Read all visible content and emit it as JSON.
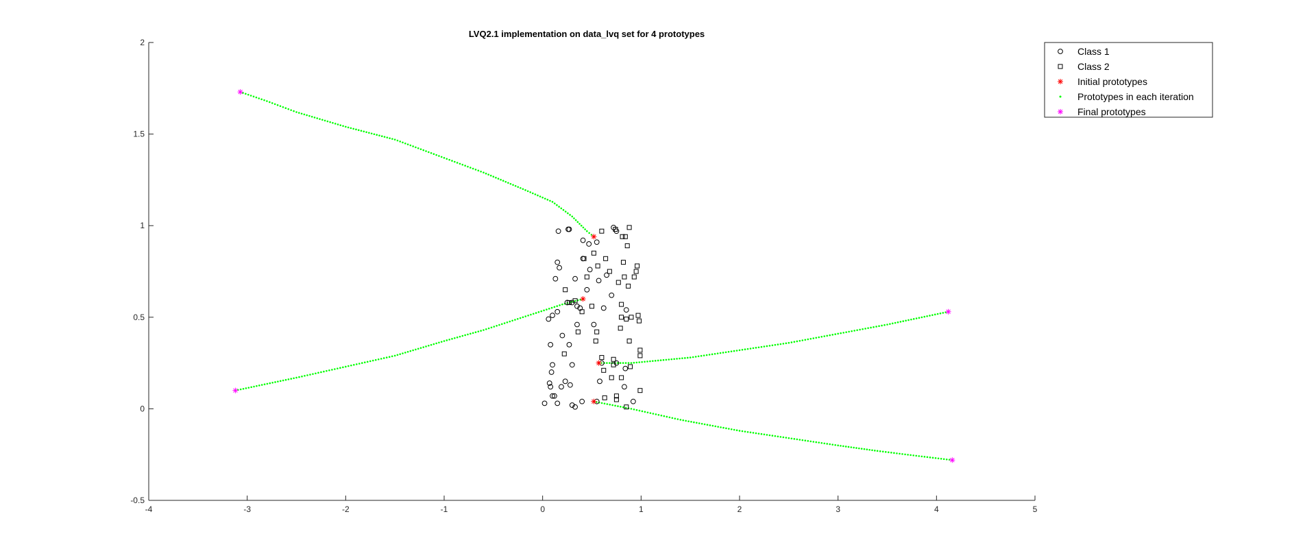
{
  "chart_data": {
    "type": "scatter",
    "title": "LVQ2.1 implementation on data_lvq set for 4 prototypes",
    "xlim": [
      -4,
      5
    ],
    "ylim": [
      -0.5,
      2
    ],
    "xticks": [
      -4,
      -3,
      -2,
      -1,
      0,
      1,
      2,
      3,
      4,
      5
    ],
    "yticks": [
      -0.5,
      0,
      0.5,
      1,
      1.5,
      2
    ],
    "grid": false,
    "legend_position": "top-right-outside",
    "colors": {
      "class1": "#000000",
      "class2": "#000000",
      "initial": "#ff0000",
      "iteration": "#00ff00",
      "final": "#ff00ff",
      "axis": "#262626"
    },
    "legend": [
      {
        "key": "class1",
        "label": "Class 1",
        "marker": "circle"
      },
      {
        "key": "class2",
        "label": "Class 2",
        "marker": "square"
      },
      {
        "key": "initial",
        "label": "Initial prototypes",
        "marker": "asterisk"
      },
      {
        "key": "iteration",
        "label": "Prototypes in each iteration",
        "marker": "dot"
      },
      {
        "key": "final",
        "label": "Final prototypes",
        "marker": "asterisk"
      }
    ],
    "class1": [
      [
        0.02,
        0.03
      ],
      [
        0.07,
        0.14
      ],
      [
        0.08,
        0.12
      ],
      [
        0.09,
        0.2
      ],
      [
        0.1,
        0.24
      ],
      [
        0.1,
        0.07
      ],
      [
        0.12,
        0.07
      ],
      [
        0.15,
        0.03
      ],
      [
        0.19,
        0.12
      ],
      [
        0.2,
        0.4
      ],
      [
        0.23,
        0.15
      ],
      [
        0.28,
        0.13
      ],
      [
        0.27,
        0.35
      ],
      [
        0.3,
        0.24
      ],
      [
        0.3,
        0.02
      ],
      [
        0.33,
        0.01
      ],
      [
        0.4,
        0.04
      ],
      [
        0.06,
        0.49
      ],
      [
        0.08,
        0.35
      ],
      [
        0.1,
        0.51
      ],
      [
        0.15,
        0.53
      ],
      [
        0.13,
        0.71
      ],
      [
        0.15,
        0.8
      ],
      [
        0.17,
        0.77
      ],
      [
        0.25,
        0.58
      ],
      [
        0.3,
        0.58
      ],
      [
        0.33,
        0.71
      ],
      [
        0.35,
        0.56
      ],
      [
        0.38,
        0.55
      ],
      [
        0.16,
        0.97
      ],
      [
        0.26,
        0.98
      ],
      [
        0.27,
        0.98
      ],
      [
        0.35,
        0.46
      ],
      [
        0.41,
        0.92
      ],
      [
        0.41,
        0.82
      ],
      [
        0.45,
        0.65
      ],
      [
        0.48,
        0.76
      ],
      [
        0.47,
        0.9
      ],
      [
        0.52,
        0.46
      ],
      [
        0.55,
        0.91
      ],
      [
        0.57,
        0.7
      ],
      [
        0.58,
        0.15
      ],
      [
        0.6,
        0.25
      ],
      [
        0.62,
        0.55
      ],
      [
        0.55,
        0.04
      ],
      [
        0.83,
        0.12
      ],
      [
        0.84,
        0.22
      ],
      [
        0.85,
        0.54
      ],
      [
        0.92,
        0.04
      ],
      [
        0.72,
        0.99
      ],
      [
        0.75,
        0.97
      ],
      [
        0.65,
        0.73
      ],
      [
        0.7,
        0.62
      ],
      [
        0.75,
        0.25
      ]
    ],
    "class2": [
      [
        0.22,
        0.3
      ],
      [
        0.23,
        0.65
      ],
      [
        0.27,
        0.58
      ],
      [
        0.33,
        0.59
      ],
      [
        0.36,
        0.42
      ],
      [
        0.4,
        0.53
      ],
      [
        0.42,
        0.82
      ],
      [
        0.45,
        0.72
      ],
      [
        0.5,
        0.56
      ],
      [
        0.52,
        0.85
      ],
      [
        0.54,
        0.37
      ],
      [
        0.55,
        0.42
      ],
      [
        0.56,
        0.78
      ],
      [
        0.6,
        0.28
      ],
      [
        0.6,
        0.97
      ],
      [
        0.62,
        0.21
      ],
      [
        0.63,
        0.06
      ],
      [
        0.64,
        0.82
      ],
      [
        0.68,
        0.75
      ],
      [
        0.7,
        0.17
      ],
      [
        0.72,
        0.27
      ],
      [
        0.72,
        0.24
      ],
      [
        0.74,
        0.98
      ],
      [
        0.75,
        0.07
      ],
      [
        0.75,
        0.05
      ],
      [
        0.77,
        0.69
      ],
      [
        0.79,
        0.44
      ],
      [
        0.8,
        0.57
      ],
      [
        0.8,
        0.5
      ],
      [
        0.8,
        0.17
      ],
      [
        0.81,
        0.94
      ],
      [
        0.83,
        0.72
      ],
      [
        0.84,
        0.94
      ],
      [
        0.85,
        0.01
      ],
      [
        0.85,
        0.49
      ],
      [
        0.86,
        0.89
      ],
      [
        0.87,
        0.67
      ],
      [
        0.88,
        0.37
      ],
      [
        0.89,
        0.23
      ],
      [
        0.9,
        0.5
      ],
      [
        0.88,
        0.99
      ],
      [
        0.93,
        0.72
      ],
      [
        0.95,
        0.75
      ],
      [
        0.96,
        0.78
      ],
      [
        0.97,
        0.51
      ],
      [
        0.98,
        0.48
      ],
      [
        0.99,
        0.29
      ],
      [
        0.99,
        0.32
      ],
      [
        0.99,
        0.1
      ],
      [
        0.82,
        0.8
      ]
    ],
    "initial_prototypes": [
      [
        0.52,
        0.94
      ],
      [
        0.41,
        0.6
      ],
      [
        0.57,
        0.25
      ],
      [
        0.52,
        0.04
      ]
    ],
    "final_prototypes": [
      [
        -3.07,
        1.73
      ],
      [
        -3.12,
        0.1
      ],
      [
        4.12,
        0.53
      ],
      [
        4.16,
        -0.28
      ]
    ],
    "iteration_paths": [
      [
        [
          0.52,
          0.94
        ],
        [
          0.45,
          0.97
        ],
        [
          0.3,
          1.05
        ],
        [
          0.1,
          1.13
        ],
        [
          -0.2,
          1.2
        ],
        [
          -0.6,
          1.29
        ],
        [
          -1.0,
          1.37
        ],
        [
          -1.5,
          1.47
        ],
        [
          -2.0,
          1.54
        ],
        [
          -2.5,
          1.62
        ],
        [
          -2.8,
          1.68
        ],
        [
          -3.07,
          1.73
        ]
      ],
      [
        [
          0.41,
          0.6
        ],
        [
          0.2,
          0.57
        ],
        [
          -0.2,
          0.5
        ],
        [
          -0.6,
          0.43
        ],
        [
          -1.0,
          0.37
        ],
        [
          -1.5,
          0.29
        ],
        [
          -2.0,
          0.23
        ],
        [
          -2.5,
          0.17
        ],
        [
          -3.12,
          0.1
        ]
      ],
      [
        [
          0.57,
          0.25
        ],
        [
          0.9,
          0.25
        ],
        [
          1.5,
          0.28
        ],
        [
          2.0,
          0.32
        ],
        [
          2.5,
          0.36
        ],
        [
          3.0,
          0.41
        ],
        [
          3.5,
          0.46
        ],
        [
          4.12,
          0.53
        ]
      ],
      [
        [
          0.52,
          0.04
        ],
        [
          0.9,
          0.0
        ],
        [
          1.4,
          -0.06
        ],
        [
          2.0,
          -0.12
        ],
        [
          2.5,
          -0.16
        ],
        [
          3.0,
          -0.2
        ],
        [
          3.4,
          -0.23
        ],
        [
          3.85,
          -0.26
        ],
        [
          4.16,
          -0.28
        ]
      ]
    ]
  }
}
